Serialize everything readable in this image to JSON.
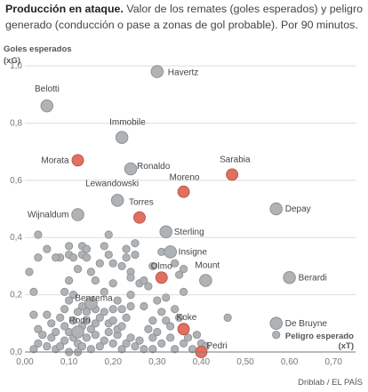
{
  "title": "Producción en ataque.",
  "subtitle": "Valor de los remates (goles esperados) y peligro generado (conducción o pase a zonas de gol probable). Por 90 minutos.",
  "credit": "Driblab / EL PAÍS",
  "colors": {
    "highlight": "#e0705f",
    "default": "#b0b3b5",
    "stroke": "#8a8d90",
    "grid": "#dddddd",
    "axis": "#777777"
  },
  "chart_data": {
    "type": "scatter",
    "xlabel": "Peligro esperado",
    "xlabel_unit": "(xT)",
    "ylabel": "Goles esperados",
    "ylabel_unit": "(xG)",
    "xlim": [
      0,
      0.75
    ],
    "ylim": [
      0,
      1.05
    ],
    "x_ticks": [
      "0,00",
      "0,10",
      "0,20",
      "0,30",
      "0,40",
      "0,50",
      "0,60",
      "0,70"
    ],
    "y_ticks": [
      "0,0",
      "0,2",
      "0,4",
      "0,6",
      "0,8",
      "1,0"
    ],
    "labeled_points": [
      {
        "name": "Havertz",
        "x": 0.3,
        "y": 0.98,
        "highlight": false
      },
      {
        "name": "Belotti",
        "x": 0.05,
        "y": 0.86,
        "highlight": false
      },
      {
        "name": "Immobile",
        "x": 0.22,
        "y": 0.75,
        "highlight": false
      },
      {
        "name": "Morata",
        "x": 0.12,
        "y": 0.67,
        "highlight": true
      },
      {
        "name": "Ronaldo",
        "x": 0.24,
        "y": 0.64,
        "highlight": false
      },
      {
        "name": "Sarabia",
        "x": 0.47,
        "y": 0.62,
        "highlight": true
      },
      {
        "name": "Moreno",
        "x": 0.36,
        "y": 0.56,
        "highlight": true
      },
      {
        "name": "Lewandowski",
        "x": 0.21,
        "y": 0.53,
        "highlight": false
      },
      {
        "name": "Depay",
        "x": 0.57,
        "y": 0.5,
        "highlight": false
      },
      {
        "name": "Wijnaldum",
        "x": 0.12,
        "y": 0.48,
        "highlight": false
      },
      {
        "name": "Torres",
        "x": 0.26,
        "y": 0.47,
        "highlight": true
      },
      {
        "name": "Sterling",
        "x": 0.32,
        "y": 0.42,
        "highlight": false
      },
      {
        "name": "Insigne",
        "x": 0.33,
        "y": 0.35,
        "highlight": false
      },
      {
        "name": "Olmo",
        "x": 0.31,
        "y": 0.26,
        "highlight": true
      },
      {
        "name": "Mount",
        "x": 0.41,
        "y": 0.25,
        "highlight": false
      },
      {
        "name": "Berardi",
        "x": 0.6,
        "y": 0.26,
        "highlight": false
      },
      {
        "name": "Benzema",
        "x": 0.15,
        "y": 0.17,
        "highlight": false
      },
      {
        "name": "De Bruyne",
        "x": 0.57,
        "y": 0.1,
        "highlight": false
      },
      {
        "name": "Rodri",
        "x": 0.12,
        "y": 0.07,
        "highlight": false
      },
      {
        "name": "Koke",
        "x": 0.36,
        "y": 0.08,
        "highlight": true
      },
      {
        "name": "Pedri",
        "x": 0.4,
        "y": 0.0,
        "highlight": true
      }
    ],
    "unlabeled_points": [
      [
        0.01,
        0.28
      ],
      [
        0.03,
        0.41
      ],
      [
        0.05,
        0.36
      ],
      [
        0.03,
        0.33
      ],
      [
        0.02,
        0.21
      ],
      [
        0.08,
        0.33
      ],
      [
        0.07,
        0.33
      ],
      [
        0.1,
        0.37
      ],
      [
        0.1,
        0.34
      ],
      [
        0.11,
        0.33
      ],
      [
        0.13,
        0.34
      ],
      [
        0.14,
        0.33
      ],
      [
        0.13,
        0.37
      ],
      [
        0.14,
        0.36
      ],
      [
        0.12,
        0.29
      ],
      [
        0.15,
        0.28
      ],
      [
        0.16,
        0.25
      ],
      [
        0.19,
        0.41
      ],
      [
        0.18,
        0.37
      ],
      [
        0.19,
        0.34
      ],
      [
        0.17,
        0.31
      ],
      [
        0.2,
        0.24
      ],
      [
        0.18,
        0.21
      ],
      [
        0.2,
        0.31
      ],
      [
        0.22,
        0.3
      ],
      [
        0.23,
        0.33
      ],
      [
        0.23,
        0.36
      ],
      [
        0.25,
        0.38
      ],
      [
        0.25,
        0.34
      ],
      [
        0.24,
        0.28
      ],
      [
        0.24,
        0.26
      ],
      [
        0.26,
        0.24
      ],
      [
        0.28,
        0.23
      ],
      [
        0.27,
        0.25
      ],
      [
        0.29,
        0.3
      ],
      [
        0.31,
        0.35
      ],
      [
        0.34,
        0.31
      ],
      [
        0.36,
        0.29
      ],
      [
        0.35,
        0.27
      ],
      [
        0.36,
        0.21
      ],
      [
        0.1,
        0.25
      ],
      [
        0.09,
        0.21
      ],
      [
        0.11,
        0.2
      ],
      [
        0.1,
        0.18
      ],
      [
        0.13,
        0.16
      ],
      [
        0.12,
        0.14
      ],
      [
        0.14,
        0.14
      ],
      [
        0.16,
        0.15
      ],
      [
        0.18,
        0.14
      ],
      [
        0.2,
        0.15
      ],
      [
        0.22,
        0.15
      ],
      [
        0.21,
        0.18
      ],
      [
        0.24,
        0.2
      ],
      [
        0.23,
        0.12
      ],
      [
        0.24,
        0.16
      ],
      [
        0.27,
        0.16
      ],
      [
        0.3,
        0.18
      ],
      [
        0.32,
        0.19
      ],
      [
        0.31,
        0.14
      ],
      [
        0.29,
        0.11
      ],
      [
        0.28,
        0.08
      ],
      [
        0.29,
        0.05
      ],
      [
        0.31,
        0.03
      ],
      [
        0.33,
        0.05
      ],
      [
        0.34,
        0.01
      ],
      [
        0.36,
        0.03
      ],
      [
        0.37,
        0.05
      ],
      [
        0.38,
        0.01
      ],
      [
        0.33,
        0.09
      ],
      [
        0.32,
        0.11
      ],
      [
        0.35,
        0.12
      ],
      [
        0.34,
        0.15
      ],
      [
        0.02,
        0.13
      ],
      [
        0.03,
        0.08
      ],
      [
        0.04,
        0.06
      ],
      [
        0.06,
        0.05
      ],
      [
        0.05,
        0.02
      ],
      [
        0.07,
        0.01
      ],
      [
        0.08,
        0.02
      ],
      [
        0.09,
        0.04
      ],
      [
        0.1,
        0.07
      ],
      [
        0.11,
        0.05
      ],
      [
        0.12,
        0.03
      ],
      [
        0.13,
        0.02
      ],
      [
        0.14,
        0.05
      ],
      [
        0.15,
        0.08
      ],
      [
        0.16,
        0.06
      ],
      [
        0.17,
        0.02
      ],
      [
        0.18,
        0.04
      ],
      [
        0.19,
        0.07
      ],
      [
        0.2,
        0.03
      ],
      [
        0.21,
        0.06
      ],
      [
        0.22,
        0.01
      ],
      [
        0.23,
        0.03
      ],
      [
        0.24,
        0.05
      ],
      [
        0.25,
        0.02
      ],
      [
        0.26,
        0.04
      ],
      [
        0.27,
        0.01
      ],
      [
        0.06,
        0.1
      ],
      [
        0.08,
        0.12
      ],
      [
        0.09,
        0.09
      ],
      [
        0.07,
        0.07
      ],
      [
        0.05,
        0.13
      ],
      [
        0.11,
        0.11
      ],
      [
        0.13,
        0.09
      ],
      [
        0.14,
        0.11
      ],
      [
        0.16,
        0.1
      ],
      [
        0.17,
        0.12
      ],
      [
        0.19,
        0.1
      ],
      [
        0.2,
        0.11
      ],
      [
        0.21,
        0.08
      ],
      [
        0.02,
        0.01
      ],
      [
        0.03,
        0.03
      ],
      [
        0.1,
        0.0
      ],
      [
        0.12,
        0.0
      ],
      [
        0.15,
        0.01
      ],
      [
        0.39,
        0.06
      ],
      [
        0.4,
        0.03
      ],
      [
        0.41,
        0.02
      ],
      [
        0.46,
        0.12
      ],
      [
        0.57,
        0.06
      ],
      [
        0.29,
        0.01
      ],
      [
        0.3,
        0.07
      ],
      [
        0.22,
        0.09
      ],
      [
        0.09,
        0.15
      ]
    ]
  }
}
